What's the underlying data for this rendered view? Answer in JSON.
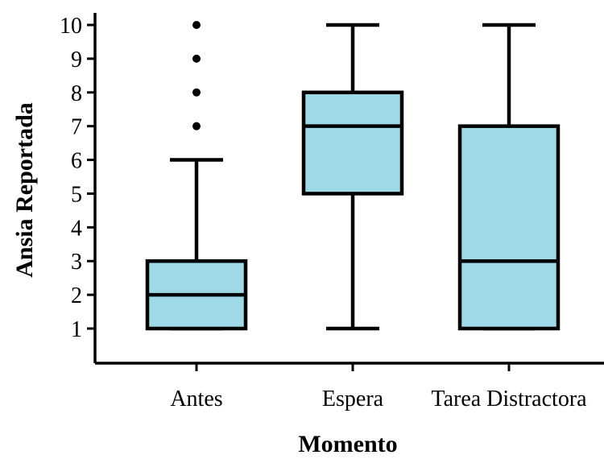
{
  "chart_data": {
    "type": "boxplot",
    "xlabel": "Momento",
    "ylabel": "Ansia Reportada",
    "yticks": [
      1,
      2,
      3,
      4,
      5,
      6,
      7,
      8,
      9,
      10
    ],
    "ylim": [
      0,
      10
    ],
    "box_color": "#9fd9e8",
    "line_color": "#000000",
    "groups": [
      {
        "category": "Antes",
        "whisker_low": 1,
        "q1": 1,
        "median": 2,
        "q3": 3,
        "whisker_high": 6,
        "outliers": [
          7,
          8,
          9,
          10
        ]
      },
      {
        "category": "Espera",
        "whisker_low": 1,
        "q1": 5,
        "median": 7,
        "q3": 8,
        "whisker_high": 10,
        "outliers": []
      },
      {
        "category": "Tarea Distractora",
        "whisker_low": 1,
        "q1": 1,
        "median": 3,
        "q3": 7,
        "whisker_high": 10,
        "outliers": []
      }
    ]
  }
}
